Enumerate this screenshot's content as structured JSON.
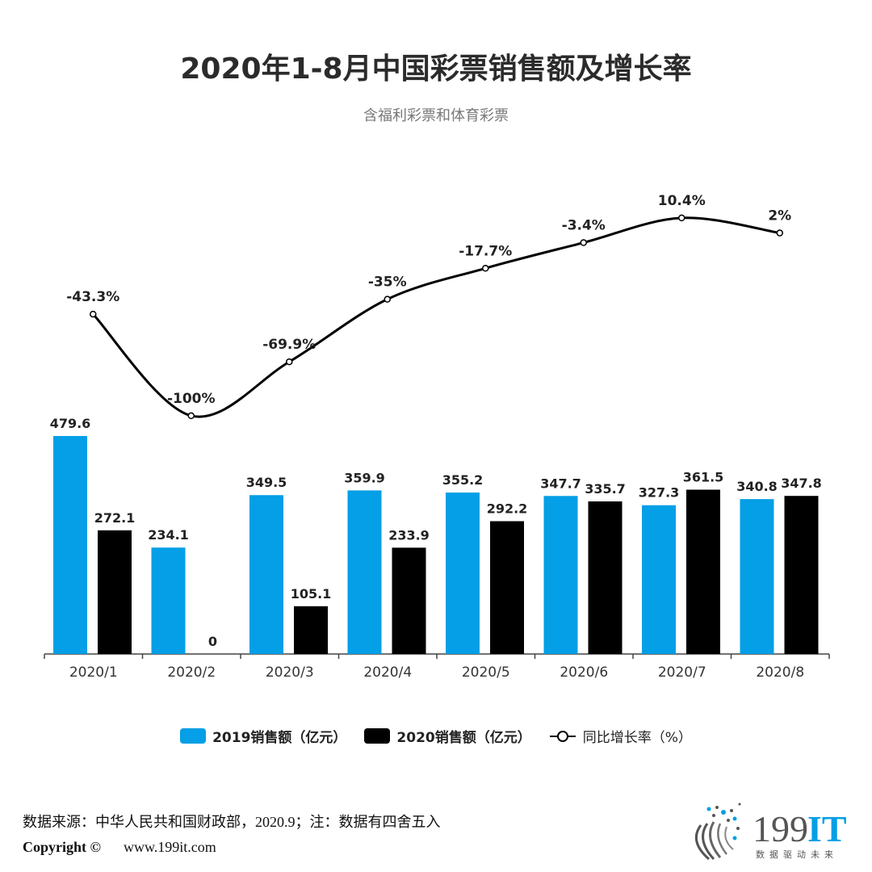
{
  "chart_data": {
    "type": "bar+line",
    "title": "2020年1-8月中国彩票销售额及增长率",
    "subtitle": "含福利彩票和体育彩票",
    "categories": [
      "2020/1",
      "2020/2",
      "2020/3",
      "2020/4",
      "2020/5",
      "2020/6",
      "2020/7",
      "2020/8"
    ],
    "series": [
      {
        "name": "2019销售额（亿元）",
        "type": "bar",
        "color": "#049fe6",
        "values": [
          479.6,
          234.1,
          349.5,
          359.9,
          355.2,
          347.7,
          327.3,
          340.8
        ],
        "labels": [
          "479.6",
          "234.1",
          "349.5",
          "359.9",
          "355.2",
          "347.7",
          "327.3",
          "340.8"
        ]
      },
      {
        "name": "2020销售额（亿元）",
        "type": "bar",
        "color": "#000000",
        "values": [
          272.1,
          0,
          105.1,
          233.9,
          292.2,
          335.7,
          361.5,
          347.8
        ],
        "labels": [
          "272.1",
          "0",
          "105.1",
          "233.9",
          "292.2",
          "335.7",
          "361.5",
          "347.8"
        ]
      },
      {
        "name": "同比增长率（%）",
        "type": "line",
        "color": "#000000",
        "smooth": true,
        "values": [
          -43.3,
          -100,
          -69.9,
          -35,
          -17.7,
          -3.4,
          10.4,
          2
        ],
        "labels": [
          "-43.3%",
          "-100%",
          "-69.9%",
          "-35%",
          "-17.7%",
          "-3.4%",
          "10.4%",
          "2%"
        ]
      }
    ],
    "legend_position": "bottom",
    "grid": false
  },
  "footer": {
    "source": "数据来源：中华人民共和国财政部，2020.9；注：数据有四舍五入",
    "copyright": "Copyright ©",
    "website": "www.199it.com"
  },
  "logo": {
    "text_gray": "199",
    "text_blue": "IT",
    "tagline": "数据驱动未来"
  }
}
